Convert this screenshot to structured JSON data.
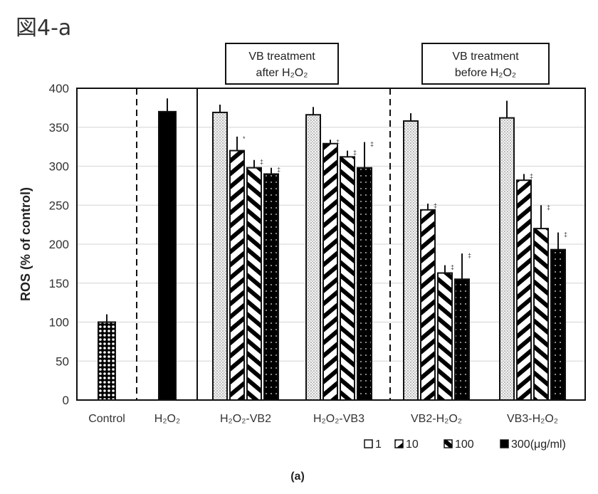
{
  "figure_label": "図4-a",
  "caption": "(a)",
  "chart_data": {
    "type": "bar",
    "title": "",
    "xlabel": "",
    "ylabel": "ROS (% of control)",
    "ylim": [
      0,
      400
    ],
    "yticks": [
      0,
      50,
      100,
      150,
      200,
      250,
      300,
      350,
      400
    ],
    "grid": true,
    "legend_position": "bottom-right",
    "legend": [
      {
        "label": "1",
        "pattern": "dots-light"
      },
      {
        "label": "10",
        "pattern": "diag-right"
      },
      {
        "label": "100",
        "pattern": "diag-left"
      },
      {
        "label": "300(μg/ml)",
        "pattern": "solid-dark"
      }
    ],
    "annotations": [
      {
        "text_line1": "VB treatment",
        "text_line2": "after H₂O₂",
        "spans": [
          "H₂O₂-VB2",
          "H₂O₂-VB3"
        ]
      },
      {
        "text_line1": "VB treatment",
        "text_line2": "before H₂O₂",
        "spans": [
          "VB2-H₂O₂",
          "VB3-H₂O₂"
        ]
      }
    ],
    "singles": [
      {
        "category": "Control",
        "value": 100,
        "error": 10,
        "pattern": "checker"
      },
      {
        "category": "H₂O₂",
        "value": 370,
        "error": 17,
        "pattern": "solid"
      }
    ],
    "categories": [
      "H₂O₂-VB2",
      "H₂O₂-VB3",
      "VB2-H₂O₂",
      "VB3-H₂O₂"
    ],
    "series": [
      {
        "name": "1",
        "values": [
          369,
          366,
          358,
          362
        ],
        "errors": [
          10,
          10,
          10,
          22
        ],
        "sig": [
          "",
          "",
          "",
          ""
        ]
      },
      {
        "name": "10",
        "values": [
          320,
          329,
          244,
          282
        ],
        "errors": [
          18,
          5,
          8,
          8
        ],
        "sig": [
          "*",
          "‡",
          "‡",
          "‡"
        ]
      },
      {
        "name": "100",
        "values": [
          298,
          312,
          163,
          220
        ],
        "errors": [
          10,
          8,
          10,
          30
        ],
        "sig": [
          "‡",
          "‡",
          "‡",
          "‡"
        ]
      },
      {
        "name": "300",
        "values": [
          290,
          298,
          155,
          193
        ],
        "errors": [
          8,
          33,
          33,
          22
        ],
        "sig": [
          "‡",
          "‡",
          "‡",
          "‡"
        ]
      }
    ]
  }
}
